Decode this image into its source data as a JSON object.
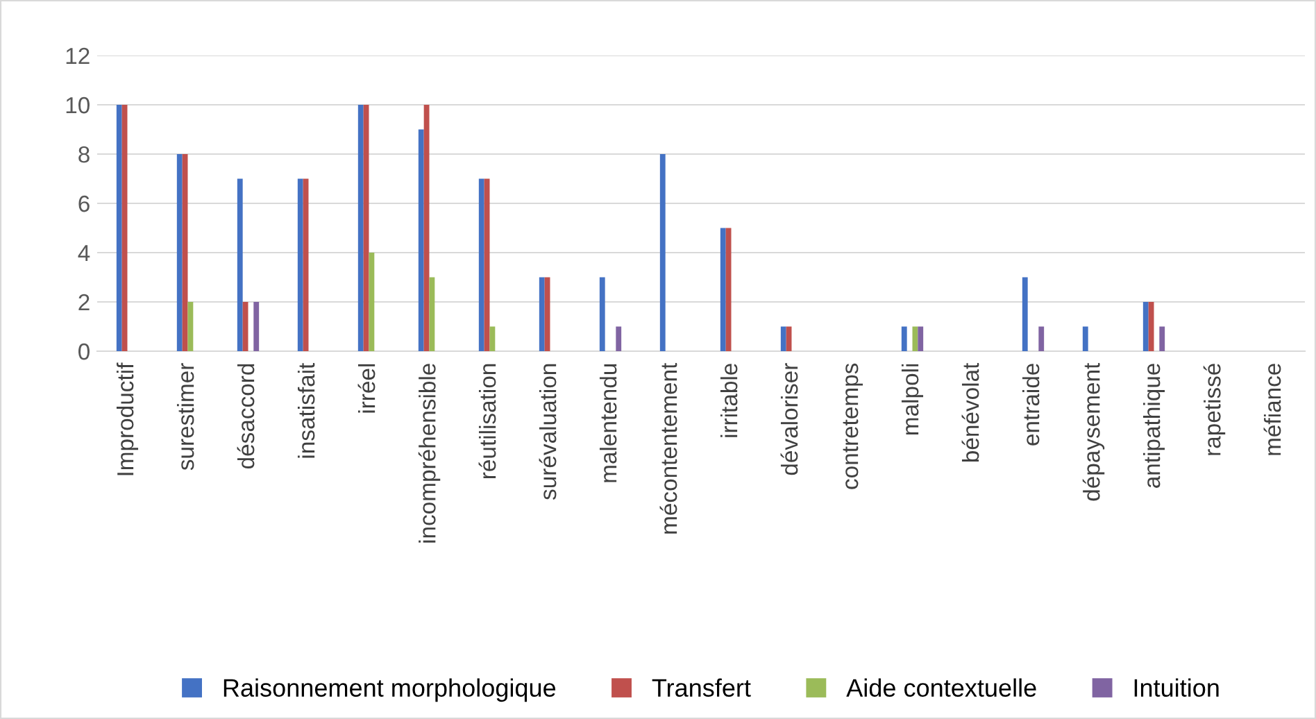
{
  "chart_data": {
    "type": "bar",
    "categories": [
      "Improductif",
      "surestimer",
      "désaccord",
      "insatisfait",
      "irréel",
      "incompréhensible",
      "réutilisation",
      "surévaluation",
      "malentendu",
      "mécontentement",
      "irritable",
      "dévaloriser",
      "contretemps",
      "malpoli",
      "bénévolat",
      "entraide",
      "dépaysement",
      "antipathique",
      "rapetissé",
      "méfiance"
    ],
    "series": [
      {
        "name": "Raisonnement morphologique",
        "color": "#4472c4",
        "values": [
          10,
          8,
          7,
          7,
          10,
          9,
          7,
          3,
          3,
          8,
          5,
          1,
          0,
          1,
          0,
          3,
          1,
          2,
          0,
          0
        ]
      },
      {
        "name": "Transfert",
        "color": "#c0504d",
        "values": [
          10,
          8,
          2,
          7,
          10,
          10,
          7,
          3,
          0,
          0,
          5,
          1,
          0,
          0,
          0,
          0,
          0,
          2,
          0,
          0
        ]
      },
      {
        "name": "Aide contextuelle",
        "color": "#9bbb59",
        "values": [
          0,
          2,
          0,
          0,
          4,
          3,
          1,
          0,
          0,
          0,
          0,
          0,
          0,
          1,
          0,
          0,
          0,
          0,
          0,
          0
        ]
      },
      {
        "name": "Intuition",
        "color": "#8064a2",
        "values": [
          0,
          0,
          2,
          0,
          0,
          0,
          0,
          0,
          1,
          0,
          0,
          0,
          0,
          1,
          0,
          1,
          0,
          1,
          0,
          0
        ]
      }
    ],
    "ylim": [
      0,
      12
    ],
    "yticks": [
      0,
      2,
      4,
      6,
      8,
      10,
      12
    ],
    "grid": "y",
    "legend": "bottom"
  }
}
